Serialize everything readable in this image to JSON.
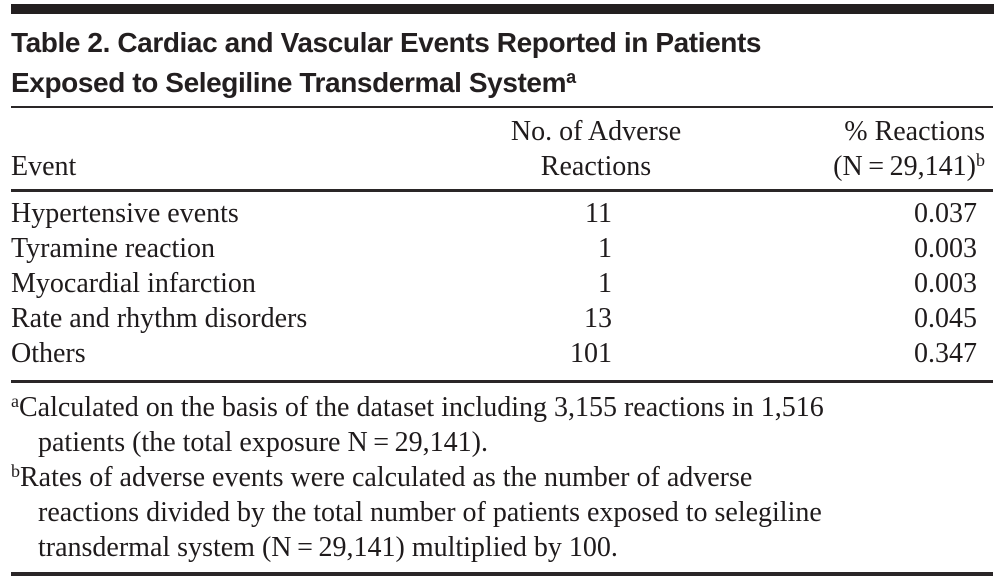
{
  "page": {
    "background": "#ffffff",
    "text_color": "#1f1b1c",
    "rule_color": "#2a2627",
    "top_bar_color": "#231f20"
  },
  "title": {
    "lines": [
      "Table 2. Cardiac and Vascular Events Reported in Patients",
      "Exposed to Selegiline Transdermal System"
    ],
    "superscript": "a"
  },
  "table": {
    "header": {
      "event": "Event",
      "col2_lines": [
        "No. of Adverse",
        "Reactions"
      ],
      "col3_line1": "% Reactions",
      "col3_line2": "(N = 29,141)",
      "col3_superscript": "b"
    },
    "rows": [
      {
        "event": "Hypertensive events",
        "n": "11",
        "pct": "0.037"
      },
      {
        "event": "Tyramine reaction",
        "n": "1",
        "pct": "0.003"
      },
      {
        "event": "Myocardial infarction",
        "n": "1",
        "pct": "0.003"
      },
      {
        "event": "Rate and rhythm disorders",
        "n": "13",
        "pct": "0.045"
      },
      {
        "event": "Others",
        "n": "101",
        "pct": "0.347"
      }
    ]
  },
  "footnotes": [
    {
      "marker": "a",
      "lines": [
        "Calculated on the basis of the dataset including 3,155 reactions in 1,516",
        "patients (the total exposure N = 29,141)."
      ]
    },
    {
      "marker": "b",
      "lines": [
        "Rates of adverse events were calculated as the number of adverse",
        "reactions divided by the total number of patients exposed to selegiline",
        "transdermal system (N = 29,141) multiplied by 100."
      ]
    }
  ]
}
